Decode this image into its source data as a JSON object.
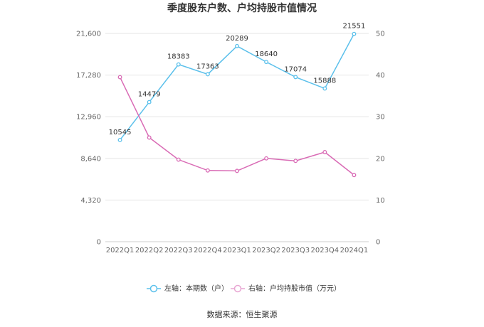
{
  "chart_data": {
    "type": "line",
    "title": "季度股东户数、户均持股市值情况",
    "categories": [
      "2022Q1",
      "2022Q2",
      "2022Q3",
      "2022Q4",
      "2023Q1",
      "2023Q2",
      "2023Q3",
      "2023Q4",
      "2024Q1"
    ],
    "left_axis": {
      "ylim": [
        0,
        21600
      ],
      "ticks": [
        0,
        4320,
        8640,
        12960,
        17280,
        21600
      ],
      "tick_labels": [
        "0",
        "4,320",
        "8,640",
        "12,960",
        "17,280",
        "21,600"
      ]
    },
    "right_axis": {
      "ylim": [
        0,
        50
      ],
      "ticks": [
        0,
        10,
        20,
        30,
        40,
        50
      ],
      "tick_labels": [
        "0",
        "10",
        "20",
        "30",
        "40",
        "50"
      ]
    },
    "series": [
      {
        "name": "左轴：本期数（户）",
        "axis": "left",
        "color": "#5bc0eb",
        "values": [
          10545,
          14479,
          18383,
          17363,
          20289,
          18640,
          17074,
          15888,
          21551
        ],
        "labels": [
          "10545",
          "14479",
          "18383",
          "17363",
          "20289",
          "18640",
          "17074",
          "15888",
          "21551"
        ]
      },
      {
        "name": "右轴：户均持股市值（万元）",
        "axis": "right",
        "color": "#d96bb5",
        "values": [
          39.5,
          25.0,
          19.7,
          17.1,
          17.0,
          20.0,
          19.4,
          21.5,
          16.0
        ]
      }
    ],
    "grid": true,
    "legend_position": "bottom"
  },
  "footer": {
    "source": "数据来源：恒生聚源"
  }
}
